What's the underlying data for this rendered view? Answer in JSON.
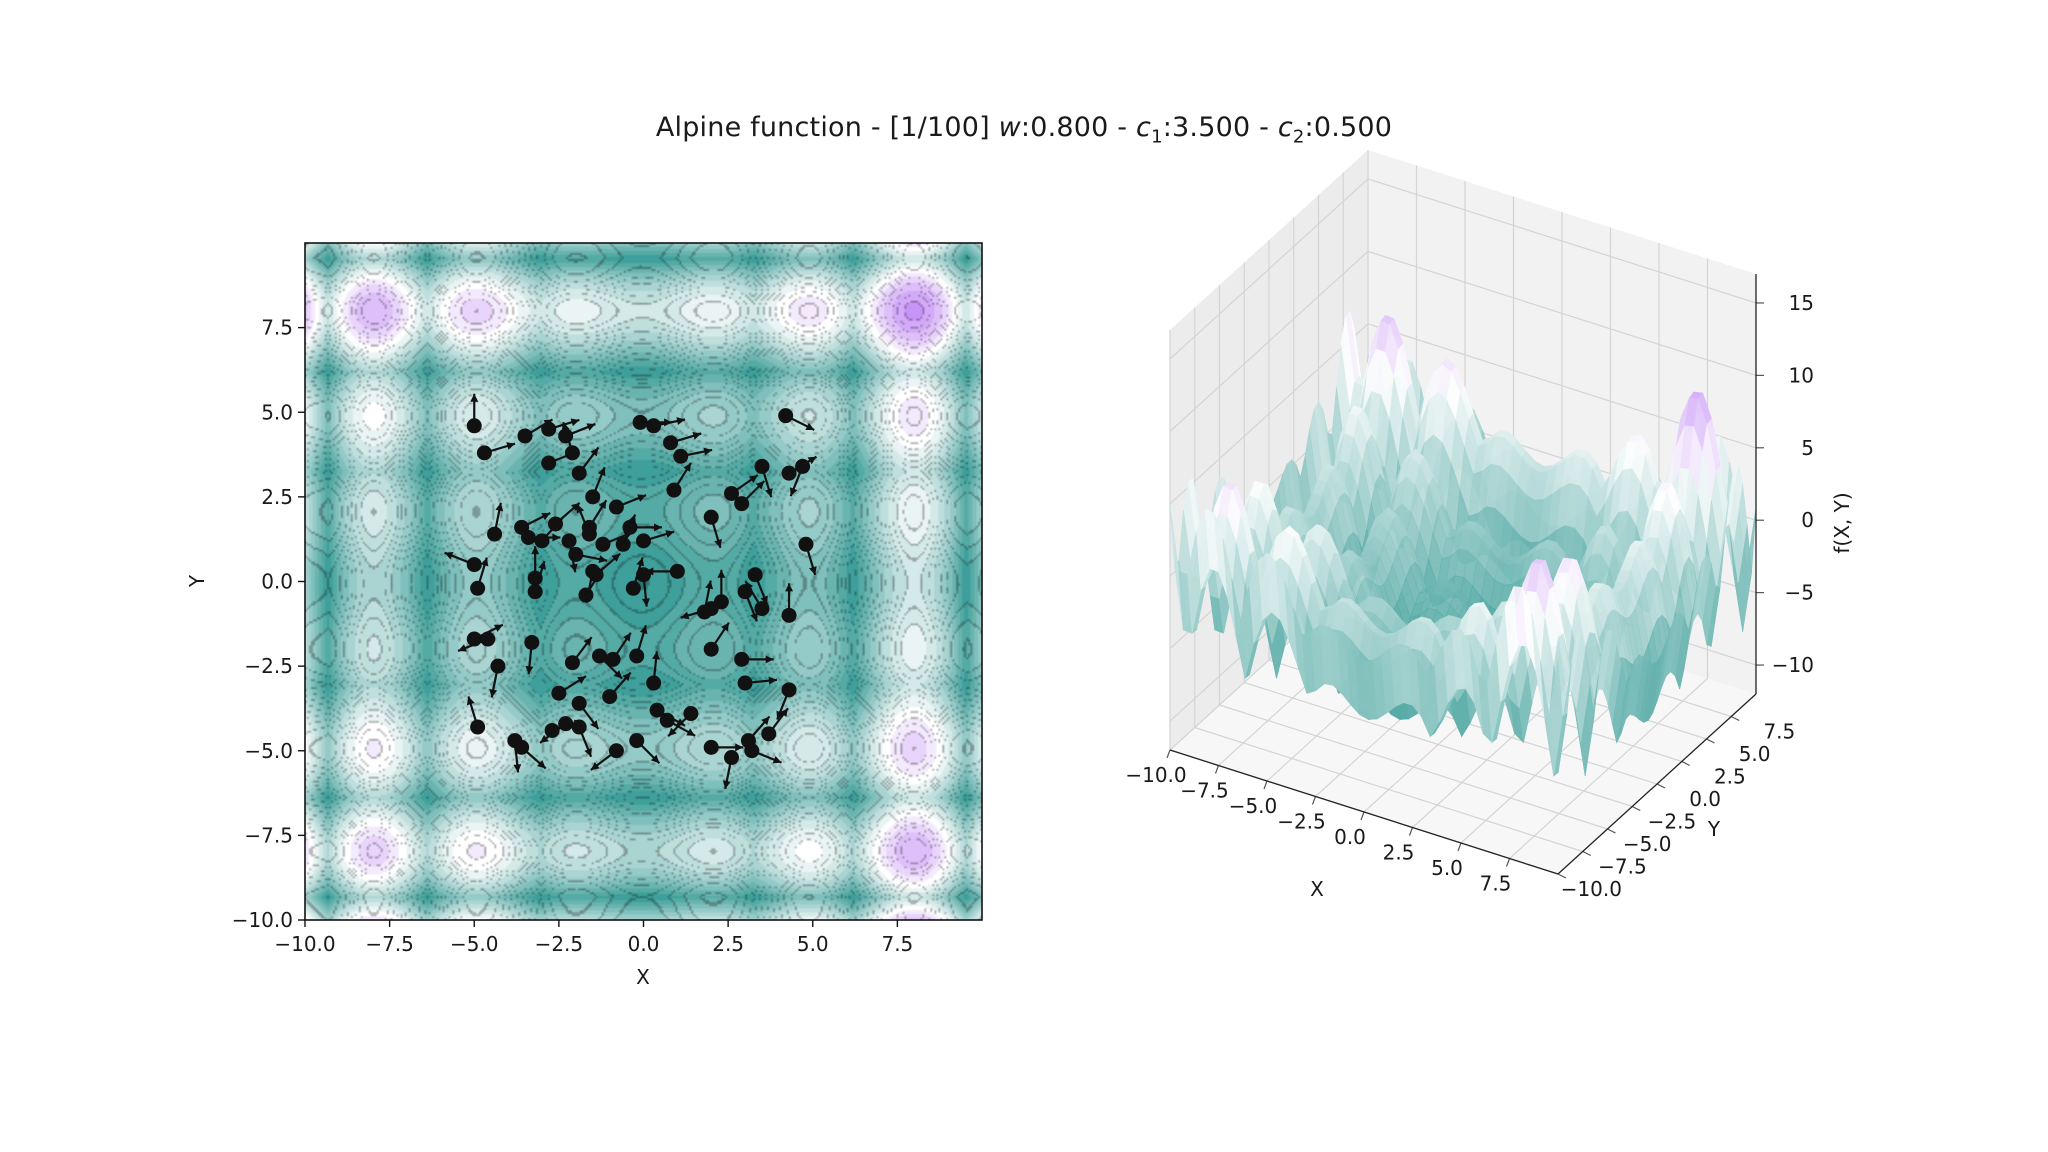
{
  "title": {
    "prefix": "Alpine function - [1/100] ",
    "w_label": "w",
    "w_value": ":0.800 - ",
    "c1_label": "c",
    "c1_sub": "1",
    "c1_value": ":3.500 - ",
    "c2_label": "c",
    "c2_sub": "2",
    "c2_value": ":0.500"
  },
  "colors": {
    "low": "#3f9f9a",
    "mid": "#ffffff",
    "high": "#9b3ff0",
    "particle": "#111111"
  },
  "chart_data": [
    {
      "type": "contour",
      "function": "alpine",
      "title": "",
      "xlabel": "X",
      "ylabel": "Y",
      "xlim": [
        -10,
        10
      ],
      "ylim": [
        -10,
        10
      ],
      "xticks": [
        "−10.0",
        "−7.5",
        "−5.0",
        "−2.5",
        "0.0",
        "2.5",
        "5.0",
        "7.5"
      ],
      "yticks": [
        "−10.0",
        "−7.5",
        "−5.0",
        "−2.5",
        "0.0",
        "2.5",
        "5.0",
        "7.5"
      ],
      "particles": [
        [
          -5.0,
          4.6,
          0.0,
          1.0
        ],
        [
          -4.7,
          3.8,
          1.0,
          0.3
        ],
        [
          -3.5,
          4.3,
          1.0,
          0.6
        ],
        [
          -2.8,
          4.5,
          1.0,
          0.3
        ],
        [
          -2.3,
          4.3,
          1.0,
          0.4
        ],
        [
          -2.1,
          3.8,
          -0.3,
          1.0
        ],
        [
          -2.8,
          3.5,
          1.0,
          0.4
        ],
        [
          -1.9,
          3.2,
          0.6,
          0.8
        ],
        [
          -0.1,
          4.7,
          1.0,
          0.0
        ],
        [
          0.3,
          4.6,
          1.0,
          0.2
        ],
        [
          0.8,
          4.1,
          1.0,
          0.3
        ],
        [
          1.1,
          3.7,
          1.0,
          0.2
        ],
        [
          0.9,
          2.7,
          0.5,
          0.8
        ],
        [
          -1.5,
          2.5,
          0.4,
          1.0
        ],
        [
          -0.8,
          2.2,
          1.0,
          0.4
        ],
        [
          -1.6,
          1.6,
          0.5,
          0.8
        ],
        [
          -2.6,
          1.7,
          0.8,
          0.7
        ],
        [
          -3.6,
          1.6,
          1.0,
          0.5
        ],
        [
          -4.4,
          1.4,
          0.2,
          1.0
        ],
        [
          -3.0,
          1.2,
          0.8,
          0.9
        ],
        [
          -3.4,
          1.3,
          1.0,
          0.0
        ],
        [
          -2.2,
          1.2,
          0.2,
          -1.0
        ],
        [
          -1.2,
          1.1,
          1.0,
          0.4
        ],
        [
          -0.6,
          1.1,
          0.4,
          1.0
        ],
        [
          0.0,
          1.2,
          1.0,
          0.3
        ],
        [
          -1.4,
          0.2,
          0.8,
          0.7
        ],
        [
          -1.5,
          0.3,
          -0.2,
          -1.0
        ],
        [
          0.0,
          0.2,
          0.1,
          -1.0
        ],
        [
          1.0,
          0.3,
          -1.0,
          0.0
        ],
        [
          -5.0,
          0.5,
          -1.0,
          0.4
        ],
        [
          -4.9,
          -0.2,
          0.3,
          1.0
        ],
        [
          -3.2,
          0.1,
          0.0,
          1.0
        ],
        [
          -3.2,
          -0.3,
          0.3,
          1.0
        ],
        [
          -1.7,
          -0.4,
          0.5,
          0.8
        ],
        [
          -0.3,
          -0.2,
          0.3,
          1.0
        ],
        [
          2.6,
          2.6,
          1.0,
          0.7
        ],
        [
          2.0,
          1.9,
          0.3,
          -1.0
        ],
        [
          2.9,
          2.3,
          0.8,
          0.8
        ],
        [
          3.5,
          3.4,
          0.3,
          -1.0
        ],
        [
          4.2,
          4.9,
          1.0,
          -0.5
        ],
        [
          4.3,
          3.2,
          1.0,
          0.6
        ],
        [
          4.7,
          3.4,
          -0.4,
          -1.0
        ],
        [
          4.8,
          1.1,
          0.3,
          -1.0
        ],
        [
          3.3,
          0.2,
          0.4,
          -1.0
        ],
        [
          3.0,
          -0.3,
          0.4,
          -1.0
        ],
        [
          2.3,
          -0.6,
          0.0,
          1.0
        ],
        [
          2.0,
          -0.8,
          -1.0,
          -0.3
        ],
        [
          1.8,
          -0.9,
          0.2,
          1.0
        ],
        [
          3.5,
          -0.8,
          -0.6,
          1.0
        ],
        [
          4.3,
          -1.0,
          0.0,
          1.0
        ],
        [
          -5.0,
          -1.7,
          0.8,
          0.4
        ],
        [
          -4.6,
          -1.7,
          -1.0,
          -0.4
        ],
        [
          -3.3,
          -1.8,
          -0.1,
          -1.0
        ],
        [
          -4.3,
          -2.5,
          -0.2,
          -1.0
        ],
        [
          -2.1,
          -2.4,
          0.6,
          0.8
        ],
        [
          -1.3,
          -2.2,
          0.8,
          -0.8
        ],
        [
          -0.9,
          -2.3,
          0.6,
          0.9
        ],
        [
          -0.2,
          -2.2,
          0.3,
          1.0
        ],
        [
          2.0,
          -2.0,
          0.6,
          0.9
        ],
        [
          2.9,
          -2.3,
          1.0,
          0.0
        ],
        [
          3.0,
          -3.0,
          1.0,
          0.1
        ],
        [
          4.3,
          -3.2,
          -0.4,
          -1.0
        ],
        [
          -2.5,
          -3.3,
          0.8,
          0.5
        ],
        [
          -1.9,
          -3.6,
          0.6,
          -0.8
        ],
        [
          -1.0,
          -3.4,
          0.7,
          0.8
        ],
        [
          0.3,
          -3.0,
          0.1,
          1.0
        ],
        [
          0.4,
          -3.8,
          0.9,
          -0.5
        ],
        [
          0.7,
          -4.1,
          0.9,
          -0.5
        ],
        [
          1.4,
          -3.9,
          -0.7,
          -0.7
        ],
        [
          -2.3,
          -4.2,
          -0.8,
          -0.6
        ],
        [
          -2.7,
          -4.4,
          1.0,
          0.3
        ],
        [
          -1.9,
          -4.3,
          0.4,
          -1.0
        ],
        [
          -4.9,
          -4.3,
          -0.3,
          1.0
        ],
        [
          -3.8,
          -4.7,
          0.1,
          -1.0
        ],
        [
          -3.6,
          -4.9,
          0.8,
          -0.7
        ],
        [
          -0.8,
          -5.0,
          -0.8,
          -0.6
        ],
        [
          -0.2,
          -4.7,
          0.7,
          -0.7
        ],
        [
          2.0,
          -4.9,
          1.0,
          0.0
        ],
        [
          2.6,
          -5.2,
          -0.2,
          -1.0
        ],
        [
          3.2,
          -5.0,
          1.0,
          -0.4
        ],
        [
          3.7,
          -4.5,
          0.6,
          0.8
        ],
        [
          3.1,
          -4.7,
          0.7,
          0.8
        ],
        [
          -1.6,
          1.4,
          -0.4,
          1.0
        ],
        [
          -0.4,
          1.6,
          1.0,
          0.0
        ],
        [
          -2.0,
          0.8,
          1.0,
          -0.2
        ]
      ]
    },
    {
      "type": "surface3d",
      "function": "alpine",
      "title": "",
      "xlabel": "X",
      "ylabel": "Y",
      "zlabel": "f(X, Y)",
      "xlim": [
        -10,
        10
      ],
      "ylim": [
        -10,
        10
      ],
      "zlim": [
        -12,
        17
      ],
      "xticks": [
        "−10.0",
        "−7.5",
        "−5.0",
        "−2.5",
        "0.0",
        "2.5",
        "5.0",
        "7.5"
      ],
      "yticks": [
        "−10.0",
        "−7.5",
        "−5.0",
        "−2.5",
        "0.0",
        "2.5",
        "5.0",
        "7.5"
      ],
      "zticks": [
        "−10",
        "−5",
        "0",
        "5",
        "10",
        "15"
      ]
    }
  ]
}
